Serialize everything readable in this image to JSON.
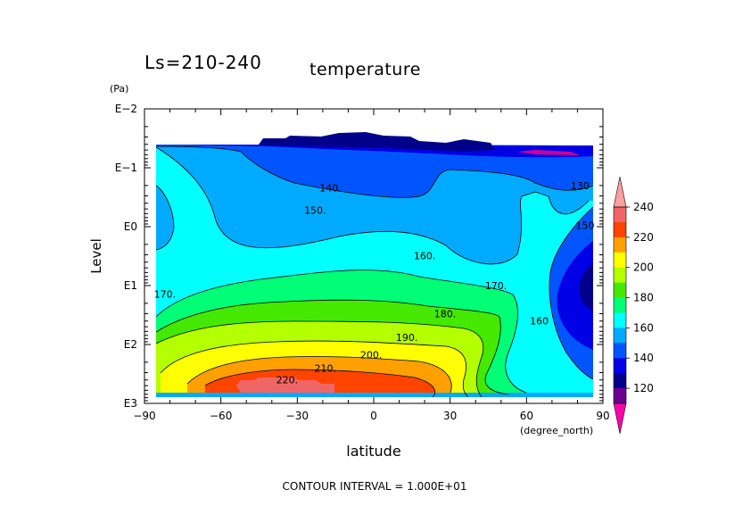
{
  "chart_data": {
    "type": "contour",
    "title": "temperature",
    "subtitle": "Ls=210-240",
    "xlabel": "latitude",
    "x_units": "(degree_north)",
    "ylabel": "Level",
    "y_units": "(Pa)",
    "y_scale": "log",
    "xlim": [
      -90,
      90
    ],
    "ylim": [
      1000,
      0.01
    ],
    "x_ticks": [
      {
        "value": -90,
        "label": "−90"
      },
      {
        "value": -60,
        "label": "−60"
      },
      {
        "value": -30,
        "label": "−30"
      },
      {
        "value": 0,
        "label": "0"
      },
      {
        "value": 30,
        "label": "30"
      },
      {
        "value": 60,
        "label": "60"
      },
      {
        "value": 90,
        "label": "90"
      }
    ],
    "y_ticks": [
      {
        "value": 0.01,
        "label": "E−2"
      },
      {
        "value": 0.1,
        "label": "E−1"
      },
      {
        "value": 1,
        "label": "E0"
      },
      {
        "value": 10,
        "label": "E1"
      },
      {
        "value": 100,
        "label": "E2"
      },
      {
        "value": 1000,
        "label": "E3"
      }
    ],
    "footer": "CONTOUR INTERVAL = 1.000E+01",
    "contour_interval": 10,
    "colorbar": {
      "labels": [
        "240",
        "220",
        "200",
        "180",
        "160",
        "140",
        "120"
      ],
      "levels": [
        {
          "range": [
            230,
            240
          ],
          "color": "#f06666"
        },
        {
          "range": [
            220,
            230
          ],
          "color": "#ff4400"
        },
        {
          "range": [
            210,
            220
          ],
          "color": "#ffa000"
        },
        {
          "range": [
            200,
            210
          ],
          "color": "#ffff00"
        },
        {
          "range": [
            190,
            200
          ],
          "color": "#b4ff00"
        },
        {
          "range": [
            180,
            190
          ],
          "color": "#44e800"
        },
        {
          "range": [
            170,
            180
          ],
          "color": "#00ff77"
        },
        {
          "range": [
            160,
            170
          ],
          "color": "#00ffff"
        },
        {
          "range": [
            150,
            160
          ],
          "color": "#00aaff"
        },
        {
          "range": [
            140,
            150
          ],
          "color": "#0055ff"
        },
        {
          "range": [
            130,
            140
          ],
          "color": "#0000e6"
        },
        {
          "range": [
            120,
            130
          ],
          "color": "#00008b"
        },
        {
          "range": [
            110,
            120
          ],
          "color": "#6a0090"
        }
      ],
      "over_color": "#ff9ea0",
      "under_color": "#ff00aa"
    },
    "contour_labels": [
      {
        "label": "140.",
        "lat": -17,
        "p": 0.22
      },
      {
        "label": "130",
        "lat": 81,
        "p": 0.2
      },
      {
        "label": "150.",
        "lat": -23,
        "p": 0.52
      },
      {
        "label": "150",
        "lat": 83,
        "p": 0.95
      },
      {
        "label": "160.",
        "lat": 20,
        "p": 3.1
      },
      {
        "label": "160",
        "lat": 65,
        "p": 40
      },
      {
        "label": "170.",
        "lat": -82,
        "p": 14
      },
      {
        "label": "170.",
        "lat": 48,
        "p": 10
      },
      {
        "label": "180.",
        "lat": 28,
        "p": 30
      },
      {
        "label": "190.",
        "lat": 13,
        "p": 75
      },
      {
        "label": "200.",
        "lat": -1,
        "p": 150
      },
      {
        "label": "210.",
        "lat": -19,
        "p": 250
      },
      {
        "label": "220.",
        "lat": -34,
        "p": 400
      }
    ]
  }
}
